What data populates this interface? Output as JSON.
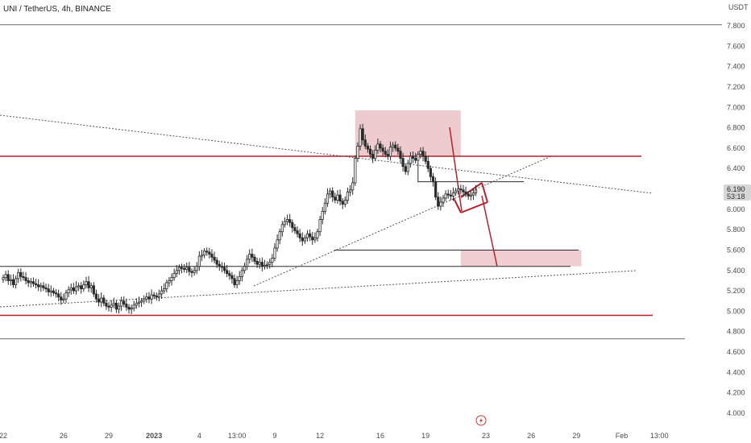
{
  "header": {
    "title": "UNI / TetherUS, 4h, BINANCE"
  },
  "price_axis": {
    "currency": "USDT"
  },
  "last_price": {
    "value": "6.190",
    "countdown": "53:18"
  },
  "colors": {
    "up": "#2b2b2b",
    "down": "#2b2b2b",
    "level_red": "#b2222f",
    "zone_fill": "#e8b9bd",
    "grid_text": "#4a4a4a",
    "badge": "#d6d6d6",
    "lightning": "#c43a3a"
  },
  "icons": {
    "bottom_marker": "lightning-icon"
  },
  "chart_data": {
    "type": "candlestick",
    "title": "UNI / TetherUS, 4h, BINANCE",
    "ylabel": "USDT",
    "ylim": [
      3.86,
      8.0
    ],
    "ticks_y": [
      "7.800",
      "7.600",
      "7.400",
      "7.200",
      "7.000",
      "6.800",
      "6.600",
      "6.400",
      "6.200",
      "6.000",
      "5.800",
      "5.600",
      "5.400",
      "5.200",
      "5.000",
      "4.800",
      "4.600",
      "4.400",
      "4.200",
      "4.000"
    ],
    "ticks_y_values": [
      7.8,
      7.6,
      7.4,
      7.2,
      7.0,
      6.8,
      6.6,
      6.4,
      6.2,
      6.0,
      5.8,
      5.6,
      5.4,
      5.2,
      5.0,
      4.8,
      4.6,
      4.4,
      4.2,
      4.0
    ],
    "ticks_x": [
      {
        "label": "22",
        "i": 0
      },
      {
        "label": "26",
        "i": 24
      },
      {
        "label": "29",
        "i": 42
      },
      {
        "label": "2023",
        "i": 60
      },
      {
        "label": "4",
        "i": 78
      },
      {
        "label": "13:00",
        "i": 93
      },
      {
        "label": "9",
        "i": 108
      },
      {
        "label": "12",
        "i": 126
      },
      {
        "label": "16",
        "i": 150
      },
      {
        "label": "19",
        "i": 168
      },
      {
        "label": "23",
        "i": 192
      },
      {
        "label": "26",
        "i": 210
      },
      {
        "label": "29",
        "i": 228
      },
      {
        "label": "Feb",
        "i": 246
      },
      {
        "label": "13:00",
        "i": 261
      }
    ],
    "candles_close": [
      5.33,
      5.36,
      5.3,
      5.31,
      5.26,
      5.32,
      5.38,
      5.34,
      5.33,
      5.3,
      5.28,
      5.29,
      5.27,
      5.26,
      5.24,
      5.25,
      5.23,
      5.22,
      5.19,
      5.2,
      5.18,
      5.17,
      5.14,
      5.11,
      5.12,
      5.18,
      5.21,
      5.23,
      5.2,
      5.24,
      5.25,
      5.22,
      5.26,
      5.29,
      5.23,
      5.25,
      5.17,
      5.12,
      5.09,
      5.13,
      5.08,
      5.05,
      5.04,
      5.06,
      5.08,
      5.02,
      5.05,
      5.1,
      5.07,
      5.04,
      5.02,
      5.03,
      5.06,
      5.08,
      5.09,
      5.1,
      5.12,
      5.14,
      5.12,
      5.16,
      5.15,
      5.14,
      5.17,
      5.2,
      5.22,
      5.28,
      5.3,
      5.33,
      5.37,
      5.4,
      5.43,
      5.42,
      5.41,
      5.43,
      5.39,
      5.38,
      5.4,
      5.44,
      5.54,
      5.55,
      5.59,
      5.58,
      5.56,
      5.53,
      5.5,
      5.46,
      5.44,
      5.43,
      5.4,
      5.37,
      5.35,
      5.32,
      5.26,
      5.3,
      5.34,
      5.4,
      5.44,
      5.51,
      5.56,
      5.53,
      5.49,
      5.46,
      5.48,
      5.44,
      5.45,
      5.46,
      5.48,
      5.52,
      5.62,
      5.7,
      5.78,
      5.85,
      5.88,
      5.9,
      5.87,
      5.82,
      5.79,
      5.76,
      5.72,
      5.69,
      5.72,
      5.76,
      5.73,
      5.7,
      5.72,
      5.78,
      5.9,
      5.98,
      6.06,
      6.15,
      6.18,
      6.12,
      6.09,
      6.14,
      6.08,
      6.05,
      6.09,
      6.17,
      6.19,
      6.26,
      6.5,
      6.62,
      6.79,
      6.68,
      6.62,
      6.59,
      6.54,
      6.5,
      6.58,
      6.64,
      6.6,
      6.57,
      6.54,
      6.52,
      6.61,
      6.63,
      6.6,
      6.57,
      6.5,
      6.42,
      6.37,
      6.45,
      6.52,
      6.5,
      6.48,
      6.54,
      6.57,
      6.52,
      6.47,
      6.4,
      6.32,
      6.27,
      6.12,
      6.03,
      6.07,
      6.11,
      6.15,
      6.14,
      6.13,
      6.16,
      6.18,
      6.2,
      6.19,
      6.17,
      6.15,
      6.13,
      6.14,
      6.16,
      6.19
    ],
    "annotations": {
      "horizontal_levels": [
        6.52,
        4.96
      ],
      "range_lines": [
        5.6,
        5.44
      ],
      "range_line_start_index": 0,
      "upper_gray_line": 7.81,
      "lower_gray_line": 4.73,
      "supply_zone": {
        "i0": 140,
        "i1": 182,
        "p0": 6.52,
        "p1": 6.97
      },
      "target_zone": {
        "i0": 182,
        "i1": 230,
        "p0": 5.44,
        "p1": 5.6
      },
      "flag_channel": {
        "i0": 172,
        "i1": 187
      },
      "projection": {
        "i0": 169,
        "p0": 6.84,
        "i1": 190,
        "p1": 5.44
      },
      "last_price_marker": 6.19
    }
  }
}
